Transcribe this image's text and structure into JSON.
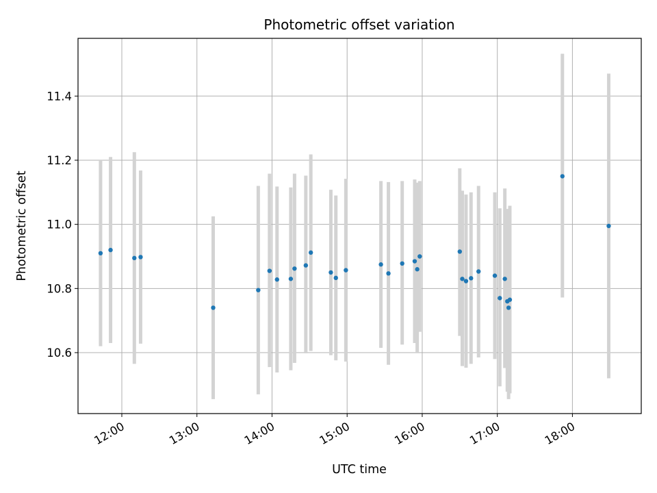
{
  "chart_data": {
    "type": "scatter",
    "title": "Photometric offset variation",
    "xlabel": "UTC time",
    "ylabel": "Photometric offset",
    "x_unit": "UTC time (HH:MM)",
    "xlim": [
      "11:25",
      "18:55"
    ],
    "ylim": [
      10.41,
      11.58
    ],
    "x_ticks": [
      "12:00",
      "13:00",
      "14:00",
      "15:00",
      "16:00",
      "17:00",
      "18:00"
    ],
    "y_ticks": [
      10.6,
      10.8,
      11.0,
      11.2,
      11.4
    ],
    "grid": true,
    "point_color": "#1f77b4",
    "errorbar_color": "#d3d3d3",
    "points": [
      {
        "x": "11:43",
        "y": 10.91,
        "lo": 10.62,
        "hi": 11.2
      },
      {
        "x": "11:51",
        "y": 10.92,
        "lo": 10.63,
        "hi": 11.21
      },
      {
        "x": "12:10",
        "y": 10.895,
        "lo": 10.565,
        "hi": 11.225
      },
      {
        "x": "12:15",
        "y": 10.898,
        "lo": 10.628,
        "hi": 11.168
      },
      {
        "x": "13:13",
        "y": 10.74,
        "lo": 10.455,
        "hi": 11.025
      },
      {
        "x": "13:49",
        "y": 10.795,
        "lo": 10.47,
        "hi": 11.12
      },
      {
        "x": "13:58",
        "y": 10.855,
        "lo": 10.555,
        "hi": 11.158
      },
      {
        "x": "14:04",
        "y": 10.828,
        "lo": 10.538,
        "hi": 11.118
      },
      {
        "x": "14:15",
        "y": 10.83,
        "lo": 10.545,
        "hi": 11.115
      },
      {
        "x": "14:18",
        "y": 10.862,
        "lo": 10.568,
        "hi": 11.158
      },
      {
        "x": "14:27",
        "y": 10.872,
        "lo": 10.598,
        "hi": 11.152
      },
      {
        "x": "14:31",
        "y": 10.912,
        "lo": 10.605,
        "hi": 11.218
      },
      {
        "x": "14:47",
        "y": 10.85,
        "lo": 10.592,
        "hi": 11.108
      },
      {
        "x": "14:51",
        "y": 10.833,
        "lo": 10.576,
        "hi": 11.09
      },
      {
        "x": "14:59",
        "y": 10.857,
        "lo": 10.572,
        "hi": 11.142
      },
      {
        "x": "15:27",
        "y": 10.875,
        "lo": 10.615,
        "hi": 11.135
      },
      {
        "x": "15:33",
        "y": 10.847,
        "lo": 10.562,
        "hi": 11.132
      },
      {
        "x": "15:44",
        "y": 10.878,
        "lo": 10.625,
        "hi": 11.135
      },
      {
        "x": "15:54",
        "y": 10.885,
        "lo": 10.63,
        "hi": 11.14
      },
      {
        "x": "15:56",
        "y": 10.86,
        "lo": 10.6,
        "hi": 11.13
      },
      {
        "x": "15:58",
        "y": 10.9,
        "lo": 10.665,
        "hi": 11.135
      },
      {
        "x": "16:30",
        "y": 10.915,
        "lo": 10.652,
        "hi": 11.175
      },
      {
        "x": "16:32",
        "y": 10.83,
        "lo": 10.558,
        "hi": 11.105
      },
      {
        "x": "16:35",
        "y": 10.823,
        "lo": 10.553,
        "hi": 11.093
      },
      {
        "x": "16:39",
        "y": 10.832,
        "lo": 10.565,
        "hi": 11.1
      },
      {
        "x": "16:45",
        "y": 10.853,
        "lo": 10.585,
        "hi": 11.12
      },
      {
        "x": "16:58",
        "y": 10.84,
        "lo": 10.58,
        "hi": 11.1
      },
      {
        "x": "17:02",
        "y": 10.77,
        "lo": 10.495,
        "hi": 11.05
      },
      {
        "x": "17:06",
        "y": 10.83,
        "lo": 10.552,
        "hi": 11.112
      },
      {
        "x": "17:08",
        "y": 10.76,
        "lo": 10.478,
        "hi": 11.048
      },
      {
        "x": "17:09",
        "y": 10.74,
        "lo": 10.455,
        "hi": 11.025
      },
      {
        "x": "17:10",
        "y": 10.765,
        "lo": 10.473,
        "hi": 11.058
      },
      {
        "x": "17:52",
        "y": 11.15,
        "lo": 10.772,
        "hi": 11.532
      },
      {
        "x": "18:29",
        "y": 10.995,
        "lo": 10.52,
        "hi": 11.47
      }
    ]
  }
}
